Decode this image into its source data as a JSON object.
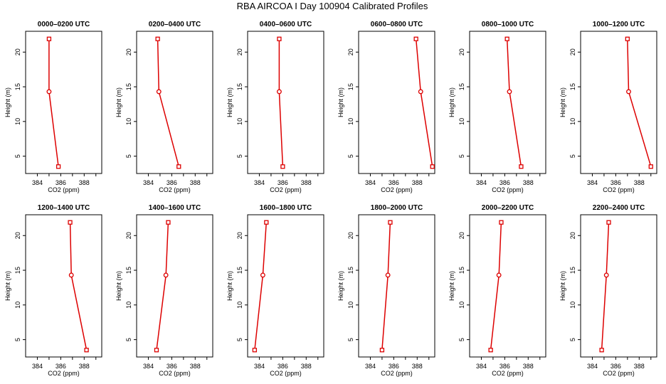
{
  "figure_title": "RBA AIRCOA I  Day 100904  Calibrated Profiles",
  "colors": {
    "series": "#dd0000",
    "axes": "#000000"
  },
  "chart_data": [
    {
      "type": "line",
      "title": "0000–0200 UTC",
      "xlabel": "CO2 (ppm)",
      "ylabel": "Height (m)",
      "xlim": [
        383,
        389.5
      ],
      "ylim": [
        2.5,
        23
      ],
      "xticks": [
        "384",
        "386",
        "388"
      ],
      "yticks": [
        "5",
        "10",
        "15",
        "20"
      ],
      "grid": false,
      "series": [
        {
          "points": [
            {
              "x": 385.8,
              "y": 3.5
            },
            {
              "x": 385.0,
              "y": 14.3
            },
            {
              "x": 385.0,
              "y": 21.9
            }
          ]
        }
      ]
    },
    {
      "type": "line",
      "title": "0200–0400 UTC",
      "xlabel": "CO2 (ppm)",
      "ylabel": "Height (m)",
      "xlim": [
        383,
        389.5
      ],
      "ylim": [
        2.5,
        23
      ],
      "xticks": [
        "384",
        "386",
        "388"
      ],
      "yticks": [
        "5",
        "10",
        "15",
        "20"
      ],
      "grid": false,
      "series": [
        {
          "points": [
            {
              "x": 386.6,
              "y": 3.5
            },
            {
              "x": 384.9,
              "y": 14.3
            },
            {
              "x": 384.8,
              "y": 21.9
            }
          ]
        }
      ]
    },
    {
      "type": "line",
      "title": "0400–0600 UTC",
      "xlabel": "CO2 (ppm)",
      "ylabel": "Height (m)",
      "xlim": [
        383,
        389.5
      ],
      "ylim": [
        2.5,
        23
      ],
      "xticks": [
        "384",
        "386",
        "388"
      ],
      "yticks": [
        "5",
        "10",
        "15",
        "20"
      ],
      "grid": false,
      "series": [
        {
          "points": [
            {
              "x": 386.0,
              "y": 3.5
            },
            {
              "x": 385.7,
              "y": 14.3
            },
            {
              "x": 385.7,
              "y": 21.9
            }
          ]
        }
      ]
    },
    {
      "type": "line",
      "title": "0600–0800 UTC",
      "xlabel": "CO2 (ppm)",
      "ylabel": "Height (m)",
      "xlim": [
        383,
        389.5
      ],
      "ylim": [
        2.5,
        23
      ],
      "xticks": [
        "384",
        "386",
        "388"
      ],
      "yticks": [
        "5",
        "10",
        "15",
        "20"
      ],
      "grid": false,
      "series": [
        {
          "points": [
            {
              "x": 389.3,
              "y": 3.5
            },
            {
              "x": 388.3,
              "y": 14.3
            },
            {
              "x": 387.9,
              "y": 21.9
            }
          ]
        }
      ]
    },
    {
      "type": "line",
      "title": "0800–1000 UTC",
      "xlabel": "CO2 (ppm)",
      "ylabel": "Height (m)",
      "xlim": [
        383,
        389.5
      ],
      "ylim": [
        2.5,
        23
      ],
      "xticks": [
        "384",
        "386",
        "388"
      ],
      "yticks": [
        "5",
        "10",
        "15",
        "20"
      ],
      "grid": false,
      "series": [
        {
          "points": [
            {
              "x": 387.4,
              "y": 3.5
            },
            {
              "x": 386.4,
              "y": 14.3
            },
            {
              "x": 386.2,
              "y": 21.9
            }
          ]
        }
      ]
    },
    {
      "type": "line",
      "title": "1000–1200 UTC",
      "xlabel": "CO2 (ppm)",
      "ylabel": "Height (m)",
      "xlim": [
        383,
        389.5
      ],
      "ylim": [
        2.5,
        23
      ],
      "xticks": [
        "384",
        "386",
        "388"
      ],
      "yticks": [
        "5",
        "10",
        "15",
        "20"
      ],
      "grid": false,
      "series": [
        {
          "points": [
            {
              "x": 389.0,
              "y": 3.5
            },
            {
              "x": 387.1,
              "y": 14.3
            },
            {
              "x": 387.0,
              "y": 21.9
            }
          ]
        }
      ]
    },
    {
      "type": "line",
      "title": "1200–1400 UTC",
      "xlabel": "CO2 (ppm)",
      "ylabel": "Height (m)",
      "xlim": [
        383,
        389.5
      ],
      "ylim": [
        2.5,
        23
      ],
      "xticks": [
        "384",
        "386",
        "388"
      ],
      "yticks": [
        "5",
        "10",
        "15",
        "20"
      ],
      "grid": false,
      "series": [
        {
          "points": [
            {
              "x": 388.2,
              "y": 3.5
            },
            {
              "x": 386.9,
              "y": 14.3
            },
            {
              "x": 386.8,
              "y": 21.9
            }
          ]
        }
      ]
    },
    {
      "type": "line",
      "title": "1400–1600 UTC",
      "xlabel": "CO2 (ppm)",
      "ylabel": "Height (m)",
      "xlim": [
        383,
        389.5
      ],
      "ylim": [
        2.5,
        23
      ],
      "xticks": [
        "384",
        "386",
        "388"
      ],
      "yticks": [
        "5",
        "10",
        "15",
        "20"
      ],
      "grid": false,
      "series": [
        {
          "points": [
            {
              "x": 384.7,
              "y": 3.5
            },
            {
              "x": 385.5,
              "y": 14.3
            },
            {
              "x": 385.7,
              "y": 21.9
            }
          ]
        }
      ]
    },
    {
      "type": "line",
      "title": "1600–1800 UTC",
      "xlabel": "CO2 (ppm)",
      "ylabel": "Height (m)",
      "xlim": [
        383,
        389.5
      ],
      "ylim": [
        2.5,
        23
      ],
      "xticks": [
        "384",
        "386",
        "388"
      ],
      "yticks": [
        "5",
        "10",
        "15",
        "20"
      ],
      "grid": false,
      "series": [
        {
          "points": [
            {
              "x": 383.6,
              "y": 3.5
            },
            {
              "x": 384.3,
              "y": 14.3
            },
            {
              "x": 384.6,
              "y": 21.9
            }
          ]
        }
      ]
    },
    {
      "type": "line",
      "title": "1800–2000 UTC",
      "xlabel": "CO2 (ppm)",
      "ylabel": "Height (m)",
      "xlim": [
        383,
        389.5
      ],
      "ylim": [
        2.5,
        23
      ],
      "xticks": [
        "384",
        "386",
        "388"
      ],
      "yticks": [
        "5",
        "10",
        "15",
        "20"
      ],
      "grid": false,
      "series": [
        {
          "points": [
            {
              "x": 385.0,
              "y": 3.5
            },
            {
              "x": 385.5,
              "y": 14.3
            },
            {
              "x": 385.7,
              "y": 21.9
            }
          ]
        }
      ]
    },
    {
      "type": "line",
      "title": "2000–2200 UTC",
      "xlabel": "CO2 (ppm)",
      "ylabel": "Height (m)",
      "xlim": [
        383,
        389.5
      ],
      "ylim": [
        2.5,
        23
      ],
      "xticks": [
        "384",
        "386",
        "388"
      ],
      "yticks": [
        "5",
        "10",
        "15",
        "20"
      ],
      "grid": false,
      "series": [
        {
          "points": [
            {
              "x": 384.8,
              "y": 3.5
            },
            {
              "x": 385.5,
              "y": 14.3
            },
            {
              "x": 385.7,
              "y": 21.9
            }
          ]
        }
      ]
    },
    {
      "type": "line",
      "title": "2200–2400 UTC",
      "xlabel": "CO2 (ppm)",
      "ylabel": "Height (m)",
      "xlim": [
        383,
        389.5
      ],
      "ylim": [
        2.5,
        23
      ],
      "xticks": [
        "384",
        "386",
        "388"
      ],
      "yticks": [
        "5",
        "10",
        "15",
        "20"
      ],
      "grid": false,
      "series": [
        {
          "points": [
            {
              "x": 384.8,
              "y": 3.5
            },
            {
              "x": 385.2,
              "y": 14.3
            },
            {
              "x": 385.4,
              "y": 21.9
            }
          ]
        }
      ]
    }
  ]
}
